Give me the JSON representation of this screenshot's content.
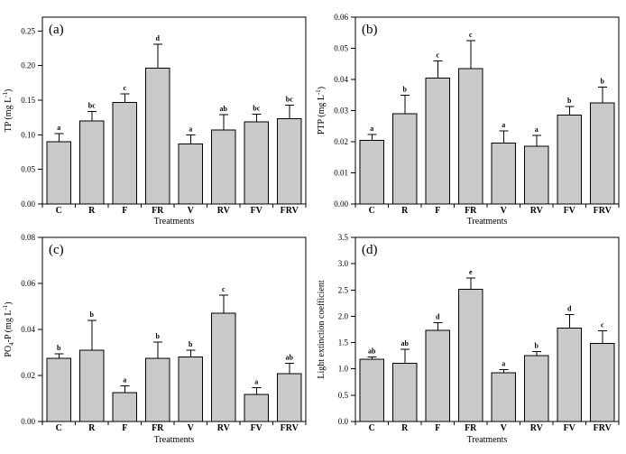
{
  "figure": {
    "background": "#ffffff",
    "bar_fill": "#c9c9c9",
    "bar_stroke": "#000000",
    "axis_color": "#000000",
    "shared_xlabel": "Treatments"
  },
  "chart_data": [
    {
      "type": "bar",
      "panel_label": "(a)",
      "ylabel": "TP (mg L-1)",
      "ylabel_parts": [
        {
          "t": "TP (mg L"
        },
        {
          "t": "-1",
          "sup": true
        },
        {
          "t": ")"
        }
      ],
      "xlabel": "Treatments",
      "categories": [
        "C",
        "R",
        "F",
        "FR",
        "V",
        "RV",
        "FV",
        "FRV"
      ],
      "values": [
        0.09,
        0.12,
        0.147,
        0.196,
        0.087,
        0.107,
        0.119,
        0.123
      ],
      "errors": [
        0.012,
        0.014,
        0.012,
        0.035,
        0.013,
        0.022,
        0.011,
        0.02
      ],
      "sig_letters": [
        "a",
        "bc",
        "c",
        "d",
        "a",
        "ab",
        "bc",
        "bc"
      ],
      "ylim": [
        0,
        0.27
      ],
      "ytick_step": 0.05,
      "ytick_decimals": 2,
      "grid": false,
      "legend": false
    },
    {
      "type": "bar",
      "panel_label": "(b)",
      "ylabel": "PTP (mg L-1)",
      "ylabel_parts": [
        {
          "t": "PTP (mg L"
        },
        {
          "t": "-1",
          "sup": true
        },
        {
          "t": ")"
        }
      ],
      "xlabel": "Treatments",
      "categories": [
        "C",
        "R",
        "F",
        "FR",
        "V",
        "RV",
        "FV",
        "FRV"
      ],
      "values": [
        0.0205,
        0.029,
        0.0405,
        0.0435,
        0.0195,
        0.0185,
        0.0285,
        0.0325
      ],
      "errors": [
        0.0018,
        0.006,
        0.0055,
        0.009,
        0.004,
        0.0035,
        0.0028,
        0.005
      ],
      "sig_letters": [
        "a",
        "b",
        "c",
        "c",
        "a",
        "a",
        "b",
        "b"
      ],
      "ylim": [
        0,
        0.06
      ],
      "ytick_step": 0.01,
      "ytick_decimals": 2,
      "grid": false,
      "legend": false
    },
    {
      "type": "bar",
      "panel_label": "(c)",
      "ylabel": "PO4-P (mg L-1)",
      "ylabel_parts": [
        {
          "t": "PO"
        },
        {
          "t": "4",
          "sub": true
        },
        {
          "t": "-P (mg L"
        },
        {
          "t": "-1",
          "sup": true
        },
        {
          "t": ")"
        }
      ],
      "xlabel": "Treatments",
      "categories": [
        "C",
        "R",
        "F",
        "FR",
        "V",
        "RV",
        "FV",
        "FRV"
      ],
      "values": [
        0.0275,
        0.031,
        0.0125,
        0.0275,
        0.028,
        0.047,
        0.0118,
        0.0207
      ],
      "errors": [
        0.002,
        0.013,
        0.003,
        0.007,
        0.003,
        0.008,
        0.003,
        0.0045
      ],
      "sig_letters": [
        "b",
        "b",
        "a",
        "b",
        "b",
        "c",
        "a",
        "ab"
      ],
      "ylim": [
        0,
        0.08
      ],
      "ytick_step": 0.02,
      "ytick_decimals": 2,
      "grid": false,
      "legend": false
    },
    {
      "type": "bar",
      "panel_label": "(d)",
      "ylabel": "Light extinction coefficient",
      "ylabel_parts": [
        {
          "t": "Light extinction coefficient"
        }
      ],
      "xlabel": "Treatments",
      "categories": [
        "C",
        "R",
        "F",
        "FR",
        "V",
        "RV",
        "FV",
        "FRV"
      ],
      "values": [
        1.18,
        1.11,
        1.73,
        2.51,
        0.93,
        1.25,
        1.78,
        1.48
      ],
      "errors": [
        0.05,
        0.26,
        0.15,
        0.22,
        0.06,
        0.08,
        0.25,
        0.24
      ],
      "sig_letters": [
        "ab",
        "ab",
        "d",
        "e",
        "a",
        "b",
        "d",
        "c"
      ],
      "ylim": [
        0,
        3.5
      ],
      "ytick_step": 0.5,
      "ytick_decimals": 1,
      "grid": false,
      "legend": false
    }
  ]
}
